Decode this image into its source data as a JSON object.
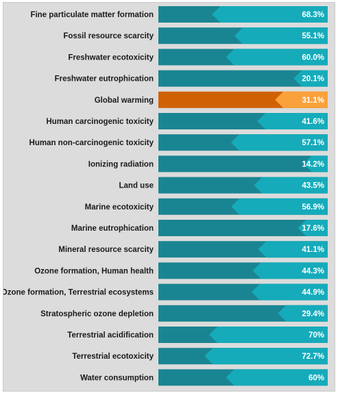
{
  "chart_data": {
    "type": "bar",
    "orientation": "horizontal",
    "categories": [
      "Fine particulate matter formation",
      "Fossil resource scarcity",
      "Freshwater ecotoxicity",
      "Freshwater eutrophication",
      "Global warming",
      "Human carcinogenic toxicity",
      "Human non-carcinogenic toxicity",
      "Ionizing radiation",
      "Land use",
      "Marine ecotoxicity",
      "Marine eutrophication",
      "Mineral resource scarcity",
      "Ozone formation, Human health",
      "Ozone formation, Terrestrial ecosystems",
      "Stratospheric ozone depletion",
      "Terrestrial acidification",
      "Terrestrial ecotoxicity",
      "Water consumption"
    ],
    "values": [
      68.3,
      55.1,
      60.0,
      20.1,
      31.1,
      41.6,
      57.1,
      14.2,
      43.5,
      56.9,
      17.6,
      41.1,
      44.3,
      44.9,
      29.4,
      70,
      72.7,
      60
    ],
    "value_labels": [
      "68.3%",
      "55.1%",
      "60.0%",
      "20.1%",
      "31.1%",
      "41.6%",
      "57.1%",
      "14.2%",
      "43.5%",
      "56.9%",
      "17.6%",
      "41.1%",
      "44.3%",
      "44.9%",
      "29.4%",
      "70%",
      "72.7%",
      "60%"
    ],
    "highlight_index": 4,
    "xlim": [
      0,
      100
    ],
    "grid": false,
    "colors": {
      "base": "#1a8592",
      "fill": "#15abba",
      "highlight_base": "#d06206",
      "highlight_fill": "#f9a13b",
      "label_text": "#1a1a1a",
      "value_text": "#ffffff",
      "panel_bg": "#dcdcdc"
    }
  }
}
